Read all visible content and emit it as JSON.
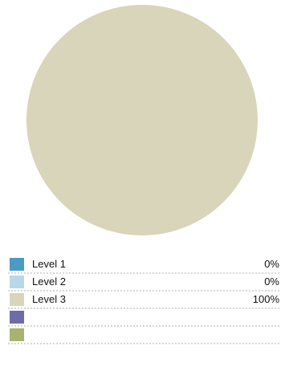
{
  "chart_data": {
    "type": "pie",
    "slices": [
      {
        "label": "Level 1",
        "value": 0,
        "display": "0%",
        "color": "#4b9bc2"
      },
      {
        "label": "Level 2",
        "value": 0,
        "display": "0%",
        "color": "#b8d8e8"
      },
      {
        "label": "Level 3",
        "value": 100,
        "display": "100%",
        "color": "#d9d5bb"
      },
      {
        "label": "",
        "value": 0,
        "display": "",
        "color": "#6f6aa8"
      },
      {
        "label": "",
        "value": 0,
        "display": "",
        "color": "#a7b36f"
      }
    ],
    "legend_position": "bottom"
  }
}
